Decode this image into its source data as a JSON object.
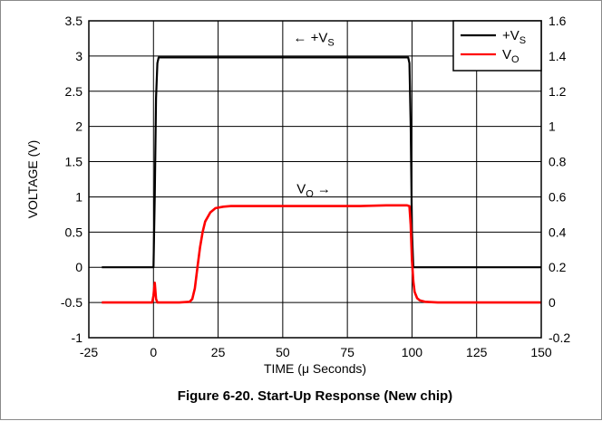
{
  "chart_data": {
    "type": "line",
    "title": "Figure 6-20. Start-Up Response (New chip)",
    "xlabel": "TIME (μ Seconds)",
    "ylabel": "VOLTAGE (V)",
    "y2label": "",
    "xlim": [
      -25,
      150
    ],
    "ylim": [
      -1,
      3.5
    ],
    "y2lim": [
      -0.2,
      1.6
    ],
    "x_ticks": [
      "-25",
      "0",
      "25",
      "50",
      "75",
      "100",
      "125",
      "150"
    ],
    "y_ticks": [
      "-1",
      "-0.5",
      "0",
      "0.5",
      "1",
      "1.5",
      "2",
      "2.5",
      "3",
      "3.5"
    ],
    "y2_ticks": [
      "-0.2",
      "0",
      "0.2",
      "0.4",
      "0.6",
      "0.8",
      "1",
      "1.2",
      "1.4",
      "1.6"
    ],
    "grid": true,
    "legend_position": "top-right",
    "series": [
      {
        "name": "+VS",
        "name_main": "+V",
        "name_sub": "S",
        "color": "#000000",
        "axis": "left",
        "x": [
          -20,
          0,
          0.5,
          1,
          1.5,
          2,
          98.5,
          99,
          99.5,
          100,
          100.5,
          150
        ],
        "y": [
          0,
          0,
          1.0,
          2.4,
          2.9,
          2.98,
          2.98,
          2.9,
          2.0,
          0.5,
          0,
          0
        ]
      },
      {
        "name": "VO",
        "name_main": "V",
        "name_sub": "O",
        "color": "#ff0000",
        "axis": "left",
        "x": [
          -20,
          -0.5,
          0,
          0.5,
          1,
          1.5,
          2.5,
          5,
          10,
          14,
          15,
          16,
          17,
          18,
          19,
          20,
          22,
          24,
          27,
          30,
          40,
          50,
          60,
          70,
          80,
          90,
          95,
          98,
          99,
          99.5,
          100,
          100.5,
          101,
          102,
          103,
          105,
          110,
          120,
          150
        ],
        "y": [
          -0.5,
          -0.5,
          -0.4,
          -0.22,
          -0.45,
          -0.5,
          -0.5,
          -0.5,
          -0.5,
          -0.49,
          -0.45,
          -0.3,
          0.0,
          0.28,
          0.5,
          0.65,
          0.78,
          0.84,
          0.86,
          0.87,
          0.87,
          0.87,
          0.87,
          0.87,
          0.87,
          0.88,
          0.88,
          0.88,
          0.87,
          0.6,
          0.1,
          -0.2,
          -0.35,
          -0.44,
          -0.47,
          -0.49,
          -0.5,
          -0.5,
          -0.5
        ]
      }
    ],
    "annotations": [
      {
        "prefix": "← +V",
        "sub": "S",
        "suffix": "",
        "x": 62,
        "y": 3.2
      },
      {
        "prefix": "V",
        "sub": "O",
        "suffix": " →",
        "x": 62,
        "y": 1.05
      }
    ]
  }
}
